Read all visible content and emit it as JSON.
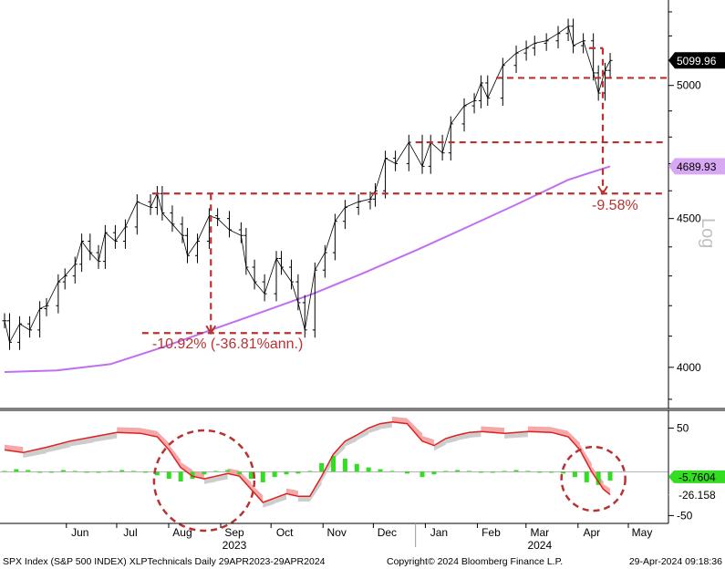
{
  "chart_data": [
    {
      "type": "line",
      "panel": "price",
      "y_scale": "log",
      "ylim": [
        3880,
        5350
      ],
      "y_ticks": [
        4000,
        4500,
        5000
      ],
      "y_axis_label": "Log",
      "last_price_label": "5099.96",
      "ma_label": "4689.93",
      "price_series": [
        [
          "2023-05-01",
          4150
        ],
        [
          "2023-05-04",
          4080
        ],
        [
          "2023-05-10",
          4140
        ],
        [
          "2023-05-16",
          4120
        ],
        [
          "2023-05-22",
          4190
        ],
        [
          "2023-05-26",
          4200
        ],
        [
          "2023-06-02",
          4280
        ],
        [
          "2023-06-06",
          4300
        ],
        [
          "2023-06-12",
          4340
        ],
        [
          "2023-06-16",
          4420
        ],
        [
          "2023-06-21",
          4380
        ],
        [
          "2023-06-26",
          4350
        ],
        [
          "2023-06-30",
          4450
        ],
        [
          "2023-07-06",
          4420
        ],
        [
          "2023-07-12",
          4470
        ],
        [
          "2023-07-19",
          4560
        ],
        [
          "2023-07-27",
          4540
        ],
        [
          "2023-07-31",
          4590
        ],
        [
          "2023-08-03",
          4520
        ],
        [
          "2023-08-09",
          4480
        ],
        [
          "2023-08-15",
          4440
        ],
        [
          "2023-08-18",
          4370
        ],
        [
          "2023-08-24",
          4420
        ],
        [
          "2023-08-31",
          4510
        ],
        [
          "2023-09-05",
          4500
        ],
        [
          "2023-09-12",
          4460
        ],
        [
          "2023-09-19",
          4440
        ],
        [
          "2023-09-22",
          4330
        ],
        [
          "2023-09-27",
          4280
        ],
        [
          "2023-10-03",
          4240
        ],
        [
          "2023-10-10",
          4360
        ],
        [
          "2023-10-13",
          4330
        ],
        [
          "2023-10-19",
          4280
        ],
        [
          "2023-10-23",
          4210
        ],
        [
          "2023-10-27",
          4120
        ],
        [
          "2023-11-02",
          4320
        ],
        [
          "2023-11-08",
          4380
        ],
        [
          "2023-11-14",
          4490
        ],
        [
          "2023-11-20",
          4540
        ],
        [
          "2023-11-28",
          4560
        ],
        [
          "2023-12-05",
          4570
        ],
        [
          "2023-12-08",
          4600
        ],
        [
          "2023-12-14",
          4720
        ],
        [
          "2023-12-20",
          4700
        ],
        [
          "2023-12-28",
          4780
        ],
        [
          "2024-01-05",
          4690
        ],
        [
          "2024-01-10",
          4780
        ],
        [
          "2024-01-17",
          4740
        ],
        [
          "2024-01-22",
          4850
        ],
        [
          "2024-01-30",
          4920
        ],
        [
          "2024-02-05",
          4940
        ],
        [
          "2024-02-09",
          5010
        ],
        [
          "2024-02-13",
          4950
        ],
        [
          "2024-02-22",
          5080
        ],
        [
          "2024-03-01",
          5130
        ],
        [
          "2024-03-07",
          5150
        ],
        [
          "2024-03-12",
          5170
        ],
        [
          "2024-03-19",
          5180
        ],
        [
          "2024-03-26",
          5210
        ],
        [
          "2024-04-01",
          5240
        ],
        [
          "2024-04-04",
          5160
        ],
        [
          "2024-04-10",
          5180
        ],
        [
          "2024-04-16",
          5050
        ],
        [
          "2024-04-19",
          4970
        ],
        [
          "2024-04-23",
          5060
        ],
        [
          "2024-04-26",
          5100
        ]
      ],
      "ma_series": [
        [
          "2023-05-01",
          3985
        ],
        [
          "2023-06-01",
          3990
        ],
        [
          "2023-07-03",
          4010
        ],
        [
          "2023-08-01",
          4060
        ],
        [
          "2023-09-01",
          4120
        ],
        [
          "2023-10-02",
          4180
        ],
        [
          "2023-11-01",
          4240
        ],
        [
          "2023-12-01",
          4310
        ],
        [
          "2024-01-02",
          4390
        ],
        [
          "2024-02-01",
          4470
        ],
        [
          "2024-03-01",
          4550
        ],
        [
          "2024-04-01",
          4640
        ],
        [
          "2024-04-26",
          4690
        ]
      ],
      "levels": [
        4590,
        4110,
        4780,
        5030
      ],
      "annotations": [
        {
          "text": "-10.92% (-36.81%ann.)"
        },
        {
          "text": "-9.58%"
        }
      ]
    },
    {
      "type": "area",
      "panel": "oscillator",
      "ylim": [
        -60,
        65
      ],
      "y_ticks": [
        50,
        -50
      ],
      "value_labels": [
        "-5.7604",
        "-26.158"
      ],
      "line_series": [
        [
          "2023-05-01",
          25
        ],
        [
          "2023-05-12",
          22
        ],
        [
          "2023-05-26",
          28
        ],
        [
          "2023-06-09",
          35
        ],
        [
          "2023-06-23",
          40
        ],
        [
          "2023-07-07",
          45
        ],
        [
          "2023-07-21",
          44
        ],
        [
          "2023-07-31",
          40
        ],
        [
          "2023-08-07",
          25
        ],
        [
          "2023-08-14",
          5
        ],
        [
          "2023-08-21",
          -5
        ],
        [
          "2023-08-28",
          -8
        ],
        [
          "2023-09-04",
          -5
        ],
        [
          "2023-09-11",
          -2
        ],
        [
          "2023-09-18",
          -5
        ],
        [
          "2023-09-25",
          -20
        ],
        [
          "2023-10-02",
          -35
        ],
        [
          "2023-10-09",
          -30
        ],
        [
          "2023-10-16",
          -25
        ],
        [
          "2023-10-23",
          -28
        ],
        [
          "2023-10-30",
          -28
        ],
        [
          "2023-11-06",
          -5
        ],
        [
          "2023-11-13",
          20
        ],
        [
          "2023-11-20",
          35
        ],
        [
          "2023-11-27",
          42
        ],
        [
          "2023-12-04",
          50
        ],
        [
          "2023-12-11",
          55
        ],
        [
          "2023-12-18",
          57
        ],
        [
          "2023-12-27",
          55
        ],
        [
          "2024-01-05",
          35
        ],
        [
          "2024-01-12",
          30
        ],
        [
          "2024-01-19",
          38
        ],
        [
          "2024-01-26",
          42
        ],
        [
          "2024-02-02",
          45
        ],
        [
          "2024-02-09",
          46
        ],
        [
          "2024-02-23",
          44
        ],
        [
          "2024-03-08",
          46
        ],
        [
          "2024-03-22",
          45
        ],
        [
          "2024-04-01",
          40
        ],
        [
          "2024-04-08",
          25
        ],
        [
          "2024-04-15",
          0
        ],
        [
          "2024-04-22",
          -20
        ],
        [
          "2024-04-26",
          -26
        ]
      ],
      "histogram": [
        [
          "2023-05-01",
          1
        ],
        [
          "2023-05-08",
          3
        ],
        [
          "2023-05-15",
          2
        ],
        [
          "2023-05-22",
          -1
        ],
        [
          "2023-05-29",
          0
        ],
        [
          "2023-06-05",
          2
        ],
        [
          "2023-06-12",
          1
        ],
        [
          "2023-06-19",
          -1
        ],
        [
          "2023-06-26",
          0
        ],
        [
          "2023-07-03",
          1
        ],
        [
          "2023-07-10",
          2
        ],
        [
          "2023-07-17",
          1
        ],
        [
          "2023-07-24",
          0
        ],
        [
          "2023-07-31",
          -4
        ],
        [
          "2023-08-07",
          -8
        ],
        [
          "2023-08-14",
          -11
        ],
        [
          "2023-08-21",
          -8
        ],
        [
          "2023-08-28",
          -3
        ],
        [
          "2023-09-04",
          1
        ],
        [
          "2023-09-11",
          2
        ],
        [
          "2023-09-18",
          -3
        ],
        [
          "2023-09-25",
          -8
        ],
        [
          "2023-10-02",
          -12
        ],
        [
          "2023-10-09",
          -6
        ],
        [
          "2023-10-16",
          -3
        ],
        [
          "2023-10-23",
          -2
        ],
        [
          "2023-10-30",
          1
        ],
        [
          "2023-11-06",
          10
        ],
        [
          "2023-11-13",
          18
        ],
        [
          "2023-11-20",
          15
        ],
        [
          "2023-11-27",
          9
        ],
        [
          "2023-12-04",
          5
        ],
        [
          "2023-12-11",
          3
        ],
        [
          "2023-12-18",
          1
        ],
        [
          "2023-12-27",
          -2
        ],
        [
          "2024-01-05",
          -6
        ],
        [
          "2024-01-12",
          -3
        ],
        [
          "2024-01-19",
          1
        ],
        [
          "2024-01-26",
          2
        ],
        [
          "2024-02-02",
          1
        ],
        [
          "2024-02-09",
          0
        ],
        [
          "2024-02-16",
          -1
        ],
        [
          "2024-02-23",
          1
        ],
        [
          "2024-03-01",
          2
        ],
        [
          "2024-03-08",
          1
        ],
        [
          "2024-03-15",
          -1
        ],
        [
          "2024-03-22",
          0
        ],
        [
          "2024-03-29",
          -2
        ],
        [
          "2024-04-05",
          -6
        ],
        [
          "2024-04-12",
          -12
        ],
        [
          "2024-04-19",
          -15
        ],
        [
          "2024-04-26",
          -10
        ]
      ]
    }
  ],
  "x_axis": {
    "ticks": [
      {
        "label": "Jun",
        "date": "2023-06-15"
      },
      {
        "label": "Jul",
        "date": "2023-07-15"
      },
      {
        "label": "Aug",
        "date": "2023-08-15"
      },
      {
        "label": "Sep",
        "date": "2023-09-15"
      },
      {
        "label": "Oct",
        "date": "2023-10-15"
      },
      {
        "label": "Nov",
        "date": "2023-11-15"
      },
      {
        "label": "Dec",
        "date": "2023-12-15"
      },
      {
        "label": "Jan",
        "date": "2024-01-15"
      },
      {
        "label": "Feb",
        "date": "2024-02-15"
      },
      {
        "label": "Mar",
        "date": "2024-03-15"
      },
      {
        "label": "Apr",
        "date": "2024-04-15"
      },
      {
        "label": "May",
        "date": "2024-05-15"
      }
    ],
    "years": [
      {
        "label": "2023",
        "date": "2023-09-15"
      },
      {
        "label": "2024",
        "date": "2024-03-15"
      }
    ]
  },
  "footer": {
    "left": "SPX Index (S&P 500 INDEX) XLPTechnicals  Daily 29APR2023-29APR2024",
    "center": "Copyright© 2024 Bloomberg Finance L.P.",
    "right": "29-Apr-2024 09:18:36"
  },
  "colors": {
    "price": "#000000",
    "ma": "#bf6ff0",
    "annotation": "#b83232",
    "osc_line": "#e02020",
    "osc_pos_fill": "#c8c8c8",
    "osc_neg_fill": "#f2a0a0",
    "histogram": "#33dd22",
    "label_dark": "#000000",
    "label_ma": "#d9a8f5"
  }
}
